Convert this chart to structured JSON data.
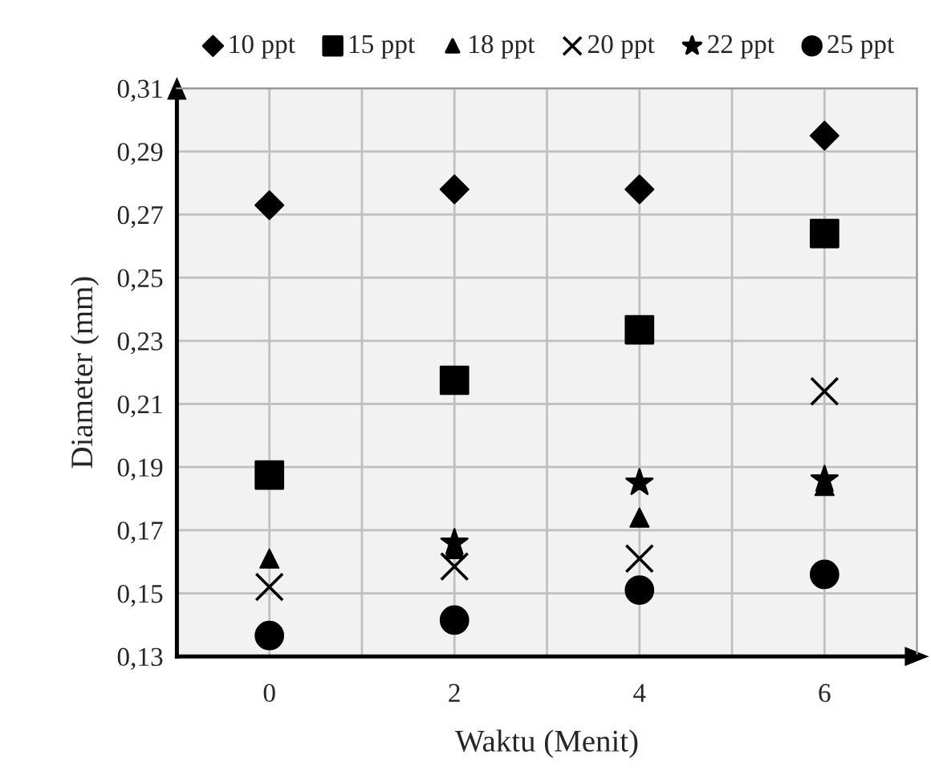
{
  "chart_data": {
    "type": "scatter",
    "xlabel": "Waktu (Menit)",
    "ylabel": "Diameter (mm)",
    "x": [
      0,
      2,
      4,
      6
    ],
    "series": [
      {
        "name": "10 ppt",
        "color": "#000000",
        "marker": "diamond",
        "values": [
          0.273,
          0.278,
          0.278,
          0.295
        ]
      },
      {
        "name": "15 ppt",
        "color": "#000000",
        "marker": "square",
        "values": [
          0.1875,
          0.2175,
          0.2335,
          0.264
        ]
      },
      {
        "name": "18 ppt",
        "color": "#000000",
        "marker": "triangle",
        "values": [
          0.161,
          0.164,
          0.174,
          0.184
        ]
      },
      {
        "name": "20 ppt",
        "color": "#000000",
        "marker": "cross",
        "values": [
          0.152,
          0.1585,
          0.161,
          0.214
        ]
      },
      {
        "name": "22 ppt",
        "color": "#000000",
        "marker": "star",
        "values": [
          null,
          0.166,
          0.185,
          0.186
        ]
      },
      {
        "name": "25 ppt",
        "color": "#000000",
        "marker": "circle",
        "values": [
          0.1366,
          0.1415,
          0.151,
          0.156
        ]
      }
    ],
    "xlim": [
      -1,
      7
    ],
    "xticks": [
      {
        "value": -1,
        "label": null
      },
      0,
      {
        "value": 1,
        "label": null
      },
      2,
      {
        "value": 3,
        "label": null
      },
      4,
      {
        "value": 5,
        "label": null
      },
      6,
      {
        "value": 7,
        "label": null
      }
    ],
    "ylim": [
      0.13,
      0.31
    ],
    "yticks": [
      {
        "value": 0.13,
        "label": "0,13"
      },
      {
        "value": 0.15,
        "label": "0,15"
      },
      {
        "value": 0.17,
        "label": "0,17"
      },
      {
        "value": 0.19,
        "label": "0,19"
      },
      {
        "value": 0.21,
        "label": "0,21"
      },
      {
        "value": 0.23,
        "label": "0,23"
      },
      {
        "value": 0.25,
        "label": "0,25"
      },
      {
        "value": 0.27,
        "label": "0,27"
      },
      {
        "value": 0.29,
        "label": "0,29"
      },
      {
        "value": 0.31,
        "label": "0,31"
      }
    ],
    "grid": true,
    "legend": "top"
  }
}
